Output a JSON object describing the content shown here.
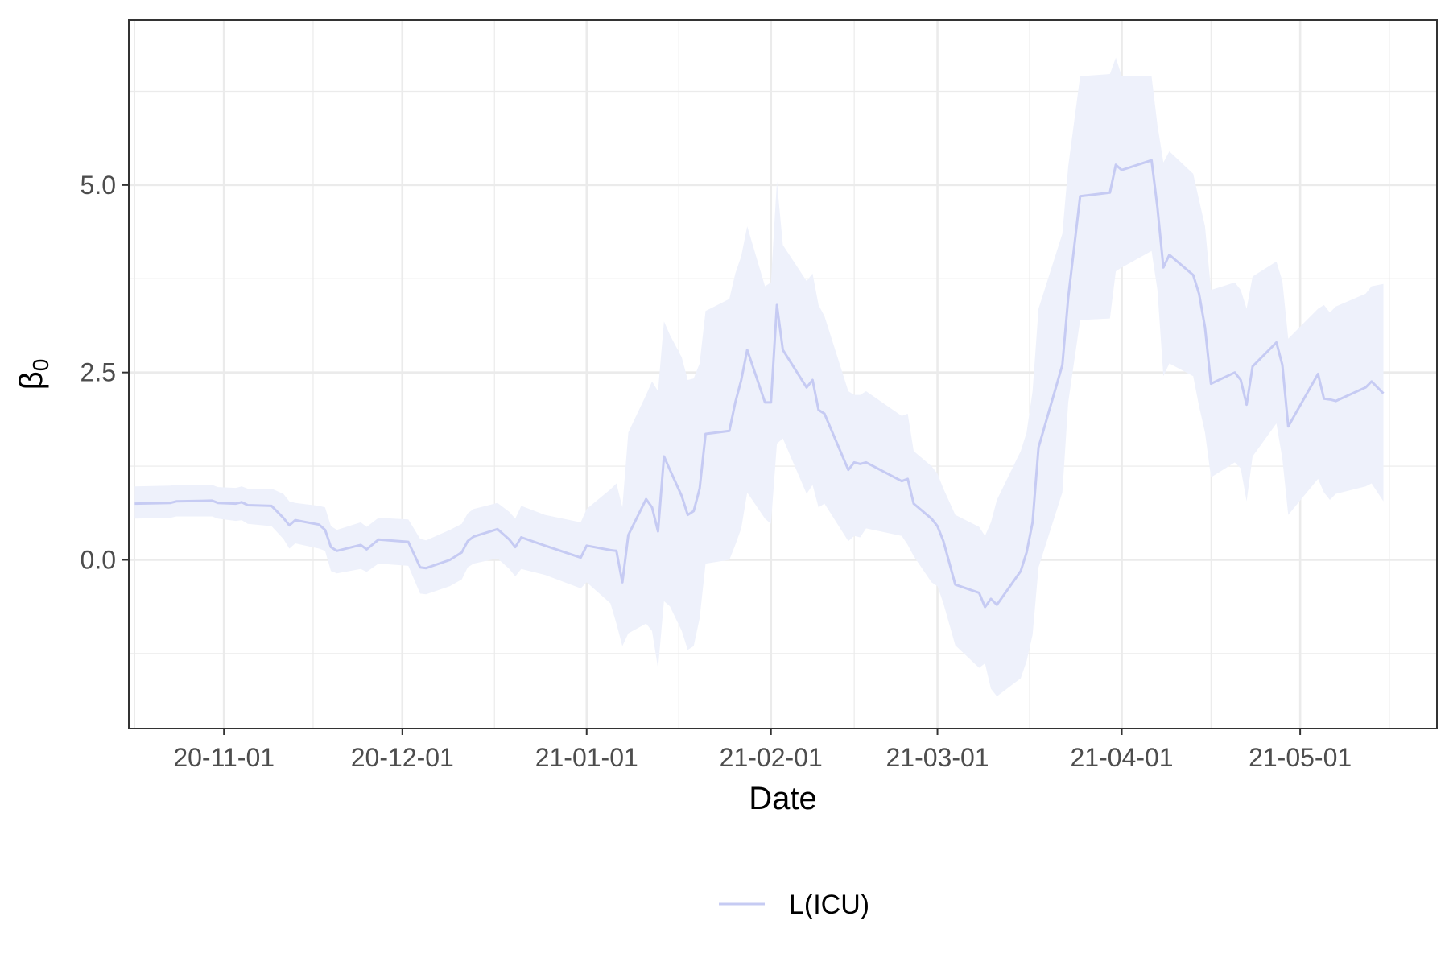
{
  "chart_data": {
    "type": "line",
    "title": "",
    "xlabel": "Date",
    "ylabel": "β",
    "ylabel_subscript": "0",
    "x_ticks": [
      "20-11-01",
      "20-12-01",
      "21-01-01",
      "21-02-01",
      "21-03-01",
      "21-04-01",
      "21-05-01"
    ],
    "y_ticks": [
      "0.0",
      "2.5",
      "5.0"
    ],
    "xlim": [
      "2020-10-16",
      "2021-05-24"
    ],
    "ylim": [
      -2.25,
      7.2
    ],
    "grid": true,
    "legend_position": "bottom",
    "colors": {
      "line": "#c6cbf3",
      "band": "#eef1fb",
      "grid": "#ebebeb",
      "panel_border": "#333333"
    },
    "series": [
      {
        "name": "L(ICU)",
        "points": [
          [
            "2020-10-17",
            0.75,
            0.55,
            0.98
          ],
          [
            "2020-10-23",
            0.76,
            0.56,
            0.99
          ],
          [
            "2020-10-24",
            0.78,
            0.58,
            1.0
          ],
          [
            "2020-10-30",
            0.79,
            0.58,
            1.0
          ],
          [
            "2020-10-31",
            0.76,
            0.55,
            0.97
          ],
          [
            "2020-11-03",
            0.75,
            0.52,
            0.96
          ],
          [
            "2020-11-04",
            0.77,
            0.53,
            0.98
          ],
          [
            "2020-11-05",
            0.73,
            0.48,
            0.95
          ],
          [
            "2020-11-09",
            0.72,
            0.45,
            0.95
          ],
          [
            "2020-11-11",
            0.56,
            0.28,
            0.88
          ],
          [
            "2020-11-12",
            0.46,
            0.15,
            0.78
          ],
          [
            "2020-11-13",
            0.53,
            0.22,
            0.76
          ],
          [
            "2020-11-17",
            0.47,
            0.15,
            0.72
          ],
          [
            "2020-11-18",
            0.4,
            0.12,
            0.7
          ],
          [
            "2020-11-19",
            0.17,
            -0.15,
            0.45
          ],
          [
            "2020-11-20",
            0.12,
            -0.18,
            0.4
          ],
          [
            "2020-11-24",
            0.2,
            -0.12,
            0.5
          ],
          [
            "2020-11-25",
            0.14,
            -0.16,
            0.44
          ],
          [
            "2020-11-27",
            0.27,
            -0.05,
            0.56
          ],
          [
            "2020-12-02",
            0.24,
            -0.08,
            0.54
          ],
          [
            "2020-12-04",
            -0.1,
            -0.45,
            0.28
          ],
          [
            "2020-12-05",
            -0.11,
            -0.46,
            0.26
          ],
          [
            "2020-12-09",
            0.0,
            -0.35,
            0.4
          ],
          [
            "2020-12-11",
            0.1,
            -0.26,
            0.48
          ],
          [
            "2020-12-12",
            0.25,
            -0.1,
            0.62
          ],
          [
            "2020-12-13",
            0.31,
            -0.05,
            0.68
          ],
          [
            "2020-12-17",
            0.41,
            0.02,
            0.76
          ],
          [
            "2020-12-19",
            0.27,
            -0.12,
            0.64
          ],
          [
            "2020-12-20",
            0.17,
            -0.22,
            0.55
          ],
          [
            "2020-12-21",
            0.3,
            -0.12,
            0.72
          ],
          [
            "2020-12-25",
            0.19,
            -0.2,
            0.6
          ],
          [
            "2020-12-31",
            0.03,
            -0.38,
            0.5
          ],
          [
            "2021-01-01",
            0.19,
            -0.3,
            0.68
          ],
          [
            "2021-01-05",
            0.13,
            -0.58,
            0.94
          ],
          [
            "2021-01-06",
            0.12,
            -0.85,
            1.02
          ],
          [
            "2021-01-07",
            -0.3,
            -1.15,
            0.7
          ],
          [
            "2021-01-08",
            0.33,
            -0.98,
            1.7
          ],
          [
            "2021-01-11",
            0.81,
            -0.85,
            2.2
          ],
          [
            "2021-01-12",
            0.7,
            -0.95,
            2.38
          ],
          [
            "2021-01-13",
            0.38,
            -1.45,
            2.25
          ],
          [
            "2021-01-14",
            1.38,
            -0.55,
            3.18
          ],
          [
            "2021-01-15",
            1.2,
            -0.62,
            3.0
          ],
          [
            "2021-01-17",
            0.85,
            -0.95,
            2.7
          ],
          [
            "2021-01-18",
            0.6,
            -1.2,
            2.4
          ],
          [
            "2021-01-19",
            0.65,
            -1.15,
            2.42
          ],
          [
            "2021-01-20",
            0.95,
            -0.78,
            2.62
          ],
          [
            "2021-01-21",
            1.68,
            -0.05,
            3.32
          ],
          [
            "2021-01-25",
            1.72,
            0.0,
            3.48
          ],
          [
            "2021-01-26",
            2.1,
            0.2,
            3.82
          ],
          [
            "2021-01-27",
            2.4,
            0.42,
            4.05
          ],
          [
            "2021-01-28",
            2.8,
            0.9,
            4.45
          ],
          [
            "2021-01-31",
            2.1,
            0.55,
            3.65
          ],
          [
            "2021-02-01",
            2.1,
            0.48,
            3.7
          ],
          [
            "2021-02-02",
            3.4,
            1.55,
            5.05
          ],
          [
            "2021-02-03",
            2.8,
            1.62,
            4.2
          ],
          [
            "2021-02-07",
            2.3,
            0.88,
            3.72
          ],
          [
            "2021-02-08",
            2.4,
            1.0,
            3.82
          ],
          [
            "2021-02-09",
            2.0,
            0.7,
            3.4
          ],
          [
            "2021-02-10",
            1.95,
            0.75,
            3.25
          ],
          [
            "2021-02-14",
            1.2,
            0.25,
            2.25
          ],
          [
            "2021-02-15",
            1.3,
            0.32,
            2.2
          ],
          [
            "2021-02-16",
            1.28,
            0.3,
            2.2
          ],
          [
            "2021-02-17",
            1.3,
            0.42,
            2.25
          ],
          [
            "2021-02-23",
            1.05,
            0.32,
            1.92
          ],
          [
            "2021-02-24",
            1.08,
            0.2,
            1.95
          ],
          [
            "2021-02-25",
            0.75,
            0.05,
            1.45
          ],
          [
            "2021-02-28",
            0.55,
            -0.3,
            1.25
          ],
          [
            "2021-03-01",
            0.45,
            -0.35,
            1.15
          ],
          [
            "2021-03-02",
            0.25,
            -0.58,
            0.95
          ],
          [
            "2021-03-04",
            -0.33,
            -1.14,
            0.6
          ],
          [
            "2021-03-08",
            -0.44,
            -1.44,
            0.44
          ],
          [
            "2021-03-09",
            -0.63,
            -1.38,
            0.32
          ],
          [
            "2021-03-10",
            -0.52,
            -1.72,
            0.5
          ],
          [
            "2021-03-11",
            -0.6,
            -1.82,
            0.8
          ],
          [
            "2021-03-15",
            -0.15,
            -1.58,
            1.45
          ],
          [
            "2021-03-16",
            0.1,
            -1.35,
            1.7
          ],
          [
            "2021-03-17",
            0.5,
            -1.0,
            2.25
          ],
          [
            "2021-03-18",
            1.5,
            -0.1,
            3.35
          ],
          [
            "2021-03-22",
            2.6,
            0.9,
            4.35
          ],
          [
            "2021-03-23",
            3.5,
            2.1,
            5.25
          ],
          [
            "2021-03-25",
            4.85,
            3.2,
            6.45
          ],
          [
            "2021-03-30",
            4.9,
            3.22,
            6.48
          ],
          [
            "2021-03-31",
            5.27,
            3.85,
            6.7
          ],
          [
            "2021-04-01",
            5.2,
            3.9,
            6.45
          ],
          [
            "2021-04-06",
            5.33,
            4.12,
            6.45
          ],
          [
            "2021-04-07",
            4.7,
            3.6,
            5.8
          ],
          [
            "2021-04-08",
            3.9,
            2.45,
            5.3
          ],
          [
            "2021-04-09",
            4.07,
            2.62,
            5.45
          ],
          [
            "2021-04-13",
            3.8,
            2.45,
            5.15
          ],
          [
            "2021-04-14",
            3.55,
            2.05,
            4.8
          ],
          [
            "2021-04-15",
            3.1,
            1.7,
            4.45
          ],
          [
            "2021-04-16",
            2.35,
            1.1,
            3.6
          ],
          [
            "2021-04-20",
            2.5,
            1.3,
            3.7
          ],
          [
            "2021-04-21",
            2.4,
            1.22,
            3.6
          ],
          [
            "2021-04-22",
            2.07,
            0.78,
            3.35
          ],
          [
            "2021-04-23",
            2.58,
            1.38,
            3.78
          ],
          [
            "2021-04-27",
            2.9,
            1.82,
            3.98
          ],
          [
            "2021-04-28",
            2.6,
            1.35,
            3.72
          ],
          [
            "2021-04-29",
            1.78,
            0.6,
            2.95
          ],
          [
            "2021-05-04",
            2.48,
            1.08,
            3.35
          ],
          [
            "2021-05-05",
            2.15,
            0.9,
            3.4
          ],
          [
            "2021-05-06",
            2.14,
            0.8,
            3.3
          ],
          [
            "2021-05-07",
            2.12,
            0.88,
            3.38
          ],
          [
            "2021-05-12",
            2.3,
            0.98,
            3.55
          ],
          [
            "2021-05-13",
            2.38,
            1.02,
            3.65
          ],
          [
            "2021-05-15",
            2.22,
            0.78,
            3.68
          ]
        ]
      }
    ]
  }
}
